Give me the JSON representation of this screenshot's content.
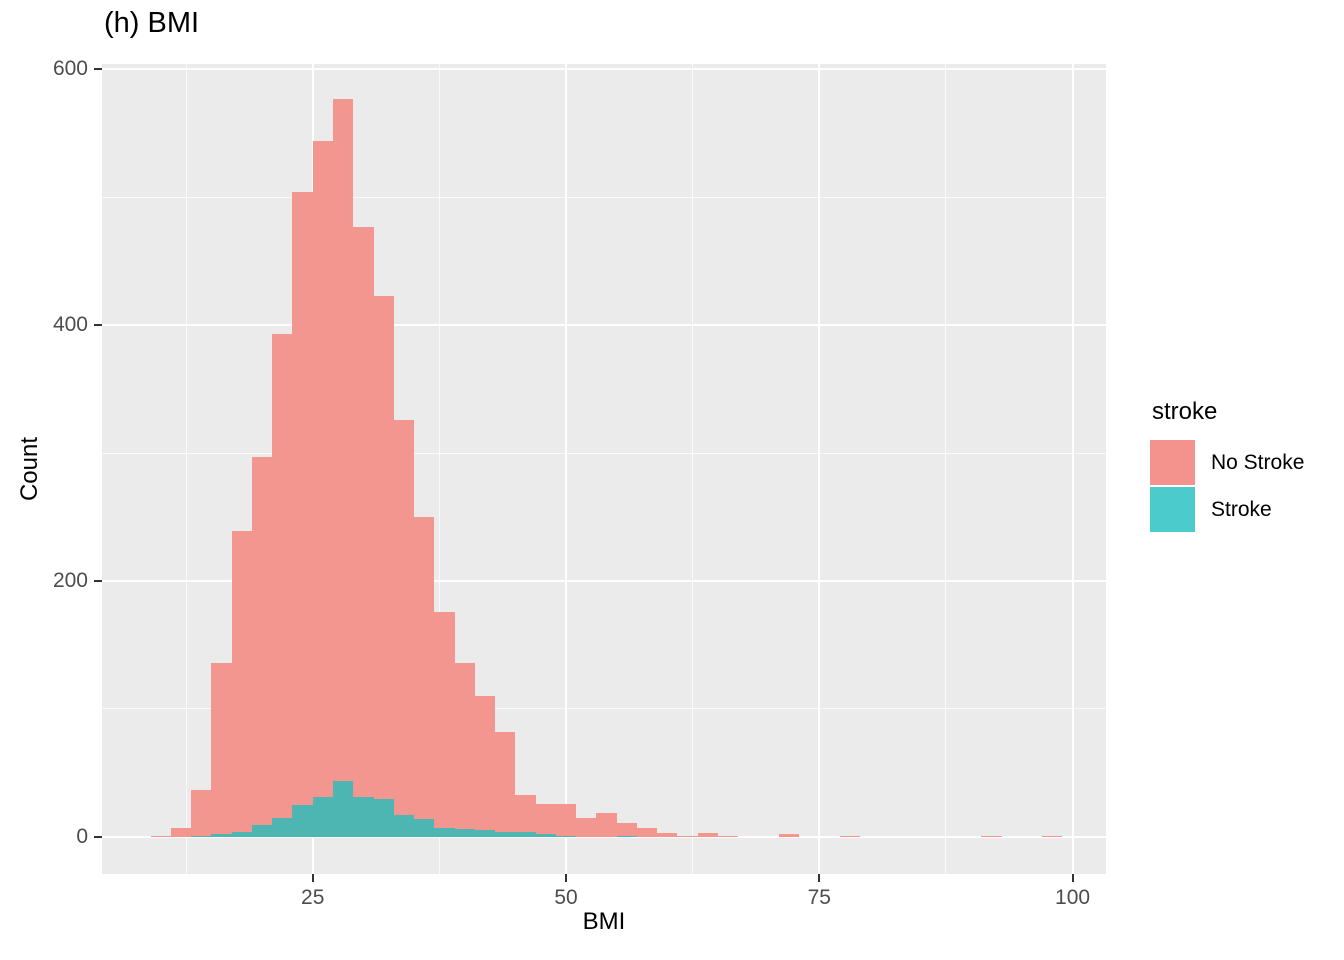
{
  "title": "(h) BMI",
  "axes": {
    "x_label": "BMI",
    "y_label": "Count",
    "x_ticks": [
      25,
      50,
      75,
      100
    ],
    "y_ticks": [
      0,
      200,
      400,
      600
    ],
    "x_minor_ticks": [
      12.5,
      37.5,
      62.5,
      87.5
    ],
    "y_minor_ticks": [
      100,
      300,
      500
    ]
  },
  "legend": {
    "title": "stroke",
    "items": [
      {
        "label": "No Stroke",
        "color": "#F4938D"
      },
      {
        "label": "Stroke",
        "color": "#4BCBCB"
      }
    ]
  },
  "colors": {
    "panel_background": "#EBEBEB",
    "gridline": "#FFFFFF",
    "tick_mark": "#333333",
    "tick_label": "#4D4D4D",
    "bar_no_stroke": "#F49690",
    "bar_stroke": "#4DB6B2"
  },
  "chart_data": {
    "type": "bar",
    "subtype": "stacked-histogram",
    "title": "(h) BMI",
    "xlabel": "BMI",
    "ylabel": "Count",
    "xlim": [
      4.2,
      103.3
    ],
    "ylim": [
      -29,
      604
    ],
    "grid": true,
    "legend_position": "right",
    "binwidth": 2,
    "bin_start": [
      9,
      11,
      13,
      15,
      17,
      19,
      21,
      23,
      25,
      27,
      29,
      31,
      33,
      35,
      37,
      39,
      41,
      43,
      45,
      47,
      49,
      51,
      53,
      55,
      57,
      59,
      61,
      63,
      65,
      71,
      77,
      91,
      97
    ],
    "series": [
      {
        "name": "Stroke",
        "values": [
          0,
          0,
          1,
          2,
          4,
          9,
          15,
          25,
          31,
          44,
          31,
          30,
          17,
          14,
          7,
          6,
          5,
          4,
          4,
          2,
          1,
          0,
          0,
          1,
          0,
          0,
          0,
          0,
          0,
          0,
          0,
          0,
          0
        ]
      },
      {
        "name": "No Stroke",
        "values": [
          1,
          7,
          36,
          134,
          235,
          288,
          378,
          479,
          513,
          533,
          446,
          393,
          309,
          236,
          169,
          130,
          105,
          78,
          29,
          24,
          25,
          15,
          19,
          10,
          7,
          3,
          1,
          3,
          1,
          2,
          1,
          1,
          1
        ]
      }
    ],
    "totals": [
      1,
      7,
      37,
      136,
      239,
      297,
      393,
      504,
      544,
      577,
      477,
      423,
      326,
      250,
      176,
      136,
      110,
      82,
      33,
      26,
      26,
      15,
      19,
      11,
      7,
      3,
      1,
      3,
      1,
      2,
      1,
      1,
      1
    ]
  }
}
